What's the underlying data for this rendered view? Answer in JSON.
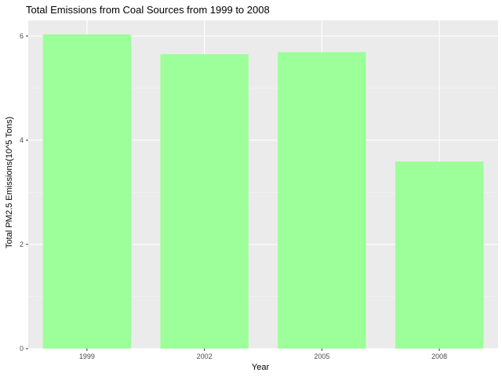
{
  "chart_data": {
    "type": "bar",
    "title": "Total Emissions from Coal Sources from 1999 to 2008",
    "xlabel": "Year",
    "ylabel": "Total PM2.5 Emissions(10^5 Tons)",
    "categories": [
      "1999",
      "2002",
      "2005",
      "2008"
    ],
    "values": [
      6.03,
      5.65,
      5.69,
      3.59
    ],
    "ylim": [
      0,
      6.3
    ],
    "yticks": [
      0,
      2,
      4,
      6
    ],
    "ytick_labels": [
      "0",
      "2",
      "4",
      "6"
    ],
    "grid": true,
    "legend": "none",
    "colors": {
      "bar": "#9CFF99",
      "panel": "#EBEBEB",
      "grid_major": "#FFFFFF",
      "grid_minor": "#F5F5F5",
      "tick": "#333333"
    }
  }
}
